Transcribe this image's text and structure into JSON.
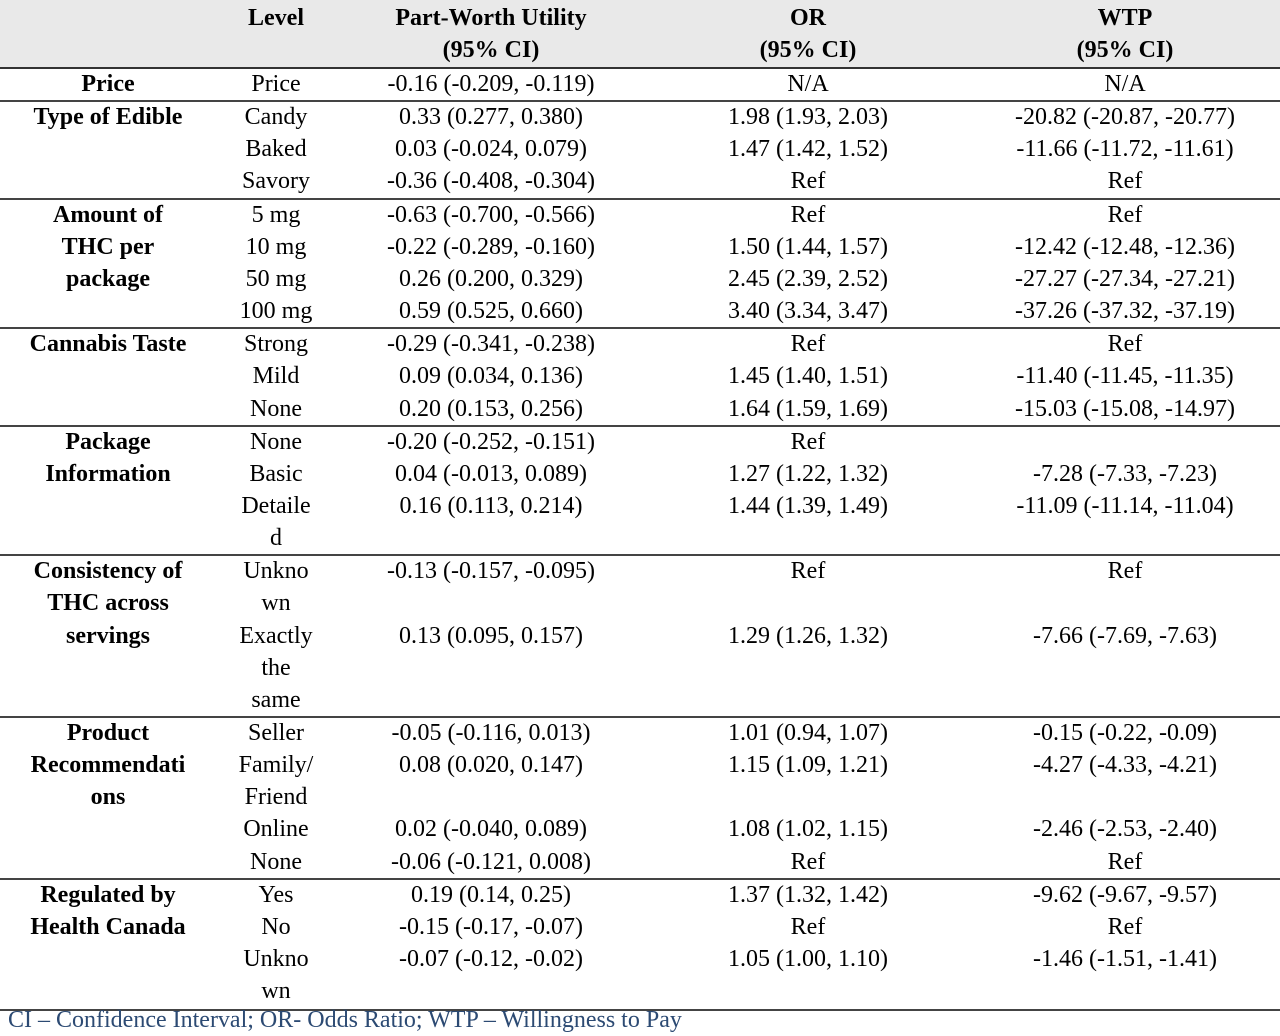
{
  "headers": {
    "attribute": "",
    "level": "Level",
    "pwu": [
      "Part-Worth Utility",
      "(95% CI)"
    ],
    "or": [
      "OR",
      "(95% CI)"
    ],
    "wtp": [
      "WTP",
      "(95% CI)"
    ]
  },
  "groups": [
    {
      "attribute": [
        "Price"
      ],
      "rows": [
        {
          "level": [
            "Price"
          ],
          "pwu": "-0.16 (-0.209, -0.119)",
          "or": "N/A",
          "wtp": "N/A"
        }
      ]
    },
    {
      "attribute": [
        "Type of Edible"
      ],
      "rows": [
        {
          "level": [
            "Candy"
          ],
          "pwu": "0.33 (0.277, 0.380)",
          "or": "1.98 (1.93, 2.03)",
          "wtp": "-20.82 (-20.87, -20.77)"
        },
        {
          "level": [
            "Baked"
          ],
          "pwu": "0.03 (-0.024, 0.079)",
          "or": "1.47 (1.42, 1.52)",
          "wtp": "-11.66 (-11.72, -11.61)"
        },
        {
          "level": [
            "Savory"
          ],
          "pwu": "-0.36 (-0.408, -0.304)",
          "or": "Ref",
          "wtp": "Ref"
        }
      ]
    },
    {
      "attribute": [
        "Amount of",
        "THC per",
        "package"
      ],
      "rows": [
        {
          "level": [
            "5 mg"
          ],
          "pwu": "-0.63 (-0.700, -0.566)",
          "or": "Ref",
          "wtp": "Ref"
        },
        {
          "level": [
            "10 mg"
          ],
          "pwu": "-0.22 (-0.289, -0.160)",
          "or": "1.50 (1.44, 1.57)",
          "wtp": "-12.42 (-12.48, -12.36)"
        },
        {
          "level": [
            "50 mg"
          ],
          "pwu": "0.26 (0.200, 0.329)",
          "or": "2.45 (2.39, 2.52)",
          "wtp": "-27.27 (-27.34, -27.21)"
        },
        {
          "level": [
            "100 mg"
          ],
          "pwu": "0.59 (0.525, 0.660)",
          "or": "3.40 (3.34, 3.47)",
          "wtp": "-37.26 (-37.32, -37.19)"
        }
      ]
    },
    {
      "attribute": [
        "Cannabis Taste"
      ],
      "rows": [
        {
          "level": [
            "Strong"
          ],
          "pwu": "-0.29 (-0.341, -0.238)",
          "or": "Ref",
          "wtp": "Ref"
        },
        {
          "level": [
            "Mild"
          ],
          "pwu": "0.09 (0.034, 0.136)",
          "or": "1.45 (1.40, 1.51)",
          "wtp": "-11.40 (-11.45, -11.35)"
        },
        {
          "level": [
            "None"
          ],
          "pwu": "0.20 (0.153, 0.256)",
          "or": "1.64 (1.59, 1.69)",
          "wtp": "-15.03 (-15.08, -14.97)"
        }
      ]
    },
    {
      "attribute": [
        "Package",
        "Information"
      ],
      "rows": [
        {
          "level": [
            "None"
          ],
          "pwu": "-0.20 (-0.252, -0.151)",
          "or": "Ref",
          "wtp": ""
        },
        {
          "level": [
            "Basic"
          ],
          "pwu": "0.04 (-0.013, 0.089)",
          "or": "1.27 (1.22, 1.32)",
          "wtp": "-7.28 (-7.33, -7.23)"
        },
        {
          "level": [
            "Detaile",
            "d"
          ],
          "pwu": "0.16 (0.113, 0.214)",
          "or": "1.44 (1.39, 1.49)",
          "wtp": "-11.09 (-11.14, -11.04)"
        }
      ]
    },
    {
      "attribute": [
        "Consistency of",
        "THC across",
        "servings"
      ],
      "rows": [
        {
          "level": [
            "Unkno",
            "wn"
          ],
          "pwu": "-0.13 (-0.157, -0.095)",
          "or": "Ref",
          "wtp": "Ref"
        },
        {
          "level": [
            "Exactly",
            "the",
            "same"
          ],
          "pwu": "0.13 (0.095, 0.157)",
          "or": "1.29 (1.26, 1.32)",
          "wtp": "-7.66 (-7.69, -7.63)"
        }
      ]
    },
    {
      "attribute": [
        "Product",
        "Recommendati",
        "ons"
      ],
      "rows": [
        {
          "level": [
            "Seller"
          ],
          "pwu": "-0.05 (-0.116, 0.013)",
          "or": "1.01 (0.94, 1.07)",
          "wtp": "-0.15 (-0.22, -0.09)"
        },
        {
          "level": [
            "Family/",
            "Friend"
          ],
          "pwu": "0.08 (0.020, 0.147)",
          "or": "1.15 (1.09, 1.21)",
          "wtp": "-4.27 (-4.33, -4.21)"
        },
        {
          "level": [
            "Online"
          ],
          "pwu": "0.02 (-0.040, 0.089)",
          "or": "1.08 (1.02, 1.15)",
          "wtp": "-2.46 (-2.53, -2.40)"
        },
        {
          "level": [
            "None"
          ],
          "pwu": "-0.06 (-0.121, 0.008)",
          "or": "Ref",
          "wtp": "Ref"
        }
      ]
    },
    {
      "attribute": [
        "Regulated by",
        "Health Canada"
      ],
      "rows": [
        {
          "level": [
            "Yes"
          ],
          "pwu": "0.19 (0.14, 0.25)",
          "or": "1.37 (1.32, 1.42)",
          "wtp": "-9.62 (-9.67, -9.57)"
        },
        {
          "level": [
            "No"
          ],
          "pwu": "-0.15 (-0.17, -0.07)",
          "or": "Ref",
          "wtp": "Ref"
        },
        {
          "level": [
            "Unkno",
            "wn"
          ],
          "pwu": "-0.07 (-0.12, -0.02)",
          "or": "1.05 (1.00, 1.10)",
          "wtp": "-1.46 (-1.51, -1.41)"
        }
      ]
    }
  ],
  "footnote": "CI – Confidence Interval; OR- Odds Ratio; WTP – Willingness to Pay"
}
